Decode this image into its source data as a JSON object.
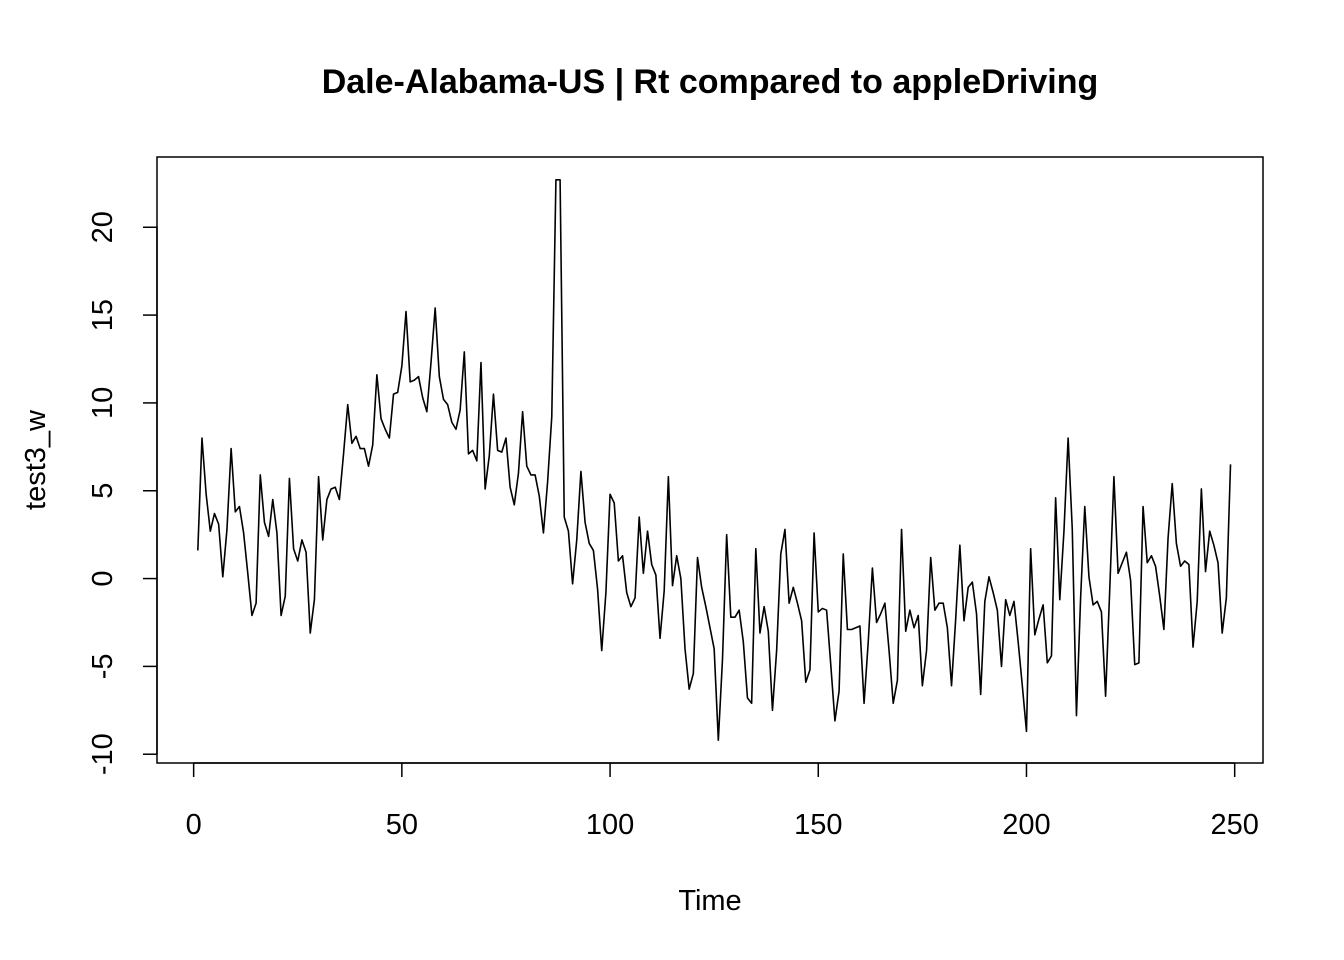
{
  "chart_data": {
    "type": "line",
    "title": "Dale-Alabama-US | Rt compared to appleDriving",
    "xlabel": "Time",
    "ylabel": "test3_w",
    "xlim": [
      -8.8,
      256.8
    ],
    "ylim": [
      -10.5,
      24.0
    ],
    "x_ticks": [
      0,
      50,
      100,
      150,
      200,
      250
    ],
    "y_ticks": [
      -10,
      -5,
      0,
      5,
      10,
      15,
      20
    ],
    "grid": false,
    "legend": "none",
    "line_color": "#000000",
    "series": [
      {
        "x_start": 1,
        "values": [
          1.6,
          8.0,
          4.8,
          2.7,
          3.7,
          3.1,
          0.1,
          2.8,
          7.4,
          3.8,
          4.1,
          2.6,
          0.3,
          -2.1,
          -1.4,
          5.9,
          3.2,
          2.4,
          4.5,
          2.6,
          -2.1,
          -1.0,
          5.7,
          1.7,
          1.0,
          2.2,
          1.5,
          -3.1,
          -1.2,
          5.8,
          2.2,
          4.5,
          5.1,
          5.2,
          4.5,
          7.1,
          9.9,
          7.7,
          8.1,
          7.4,
          7.4,
          6.4,
          7.6,
          11.6,
          9.1,
          8.5,
          8.0,
          10.5,
          10.6,
          12.1,
          15.2,
          11.2,
          11.3,
          11.5,
          10.3,
          9.5,
          12.3,
          15.4,
          11.5,
          10.2,
          9.9,
          8.9,
          8.5,
          9.6,
          12.9,
          7.1,
          7.3,
          6.7,
          12.3,
          5.1,
          7.0,
          10.5,
          7.3,
          7.2,
          8.0,
          5.2,
          4.2,
          6.0,
          9.5,
          6.4,
          5.9,
          5.9,
          4.7,
          2.6,
          5.5,
          9.2,
          22.7,
          22.7,
          3.5,
          2.7,
          -0.3,
          2.2,
          6.1,
          3.2,
          2.0,
          1.6,
          -0.6,
          -4.1,
          -0.8,
          4.8,
          4.3,
          1.0,
          1.3,
          -0.8,
          -1.6,
          -1.1,
          3.5,
          0.3,
          2.7,
          0.8,
          0.2,
          -3.4,
          -0.7,
          5.8,
          -0.4,
          1.3,
          0.0,
          -4.0,
          -6.3,
          -5.4,
          1.2,
          -0.5,
          -1.6,
          -2.8,
          -4.0,
          -9.2,
          -4.6,
          2.5,
          -2.2,
          -2.2,
          -1.8,
          -3.6,
          -6.8,
          -7.1,
          1.7,
          -3.1,
          -1.6,
          -3.0,
          -7.5,
          -4.1,
          1.4,
          2.8,
          -1.4,
          -0.5,
          -1.4,
          -2.4,
          -5.9,
          -5.2,
          2.6,
          -1.9,
          -1.7,
          -1.8,
          -4.9,
          -8.1,
          -6.4,
          1.4,
          -2.9,
          -2.9,
          -2.8,
          -2.7,
          -7.1,
          -3.6,
          0.6,
          -2.5,
          -2.0,
          -1.4,
          -4.1,
          -7.1,
          -5.8,
          2.8,
          -3.0,
          -1.8,
          -2.8,
          -2.1,
          -6.1,
          -4.1,
          1.2,
          -1.8,
          -1.4,
          -1.4,
          -2.8,
          -6.1,
          -2.3,
          1.9,
          -2.4,
          -0.5,
          -0.2,
          -2.0,
          -6.6,
          -1.3,
          0.1,
          -0.8,
          -1.8,
          -5.0,
          -1.2,
          -2.1,
          -1.3,
          -3.6,
          -6.1,
          -8.7,
          1.7,
          -3.2,
          -2.3,
          -1.5,
          -4.8,
          -4.4,
          4.6,
          -1.2,
          2.7,
          8.0,
          2.8,
          -7.8,
          -1.1,
          4.1,
          0.1,
          -1.5,
          -1.3,
          -1.9,
          -6.7,
          -0.6,
          5.8,
          0.3,
          0.9,
          1.5,
          -0.1,
          -4.9,
          -4.8,
          4.1,
          0.9,
          1.3,
          0.7,
          -1.0,
          -2.9,
          2.3,
          5.4,
          2.0,
          0.7,
          1.0,
          0.8,
          -3.9,
          -1.3,
          5.1,
          0.4,
          2.7,
          1.9,
          0.9,
          -3.1,
          -1.1,
          6.5
        ]
      }
    ]
  }
}
